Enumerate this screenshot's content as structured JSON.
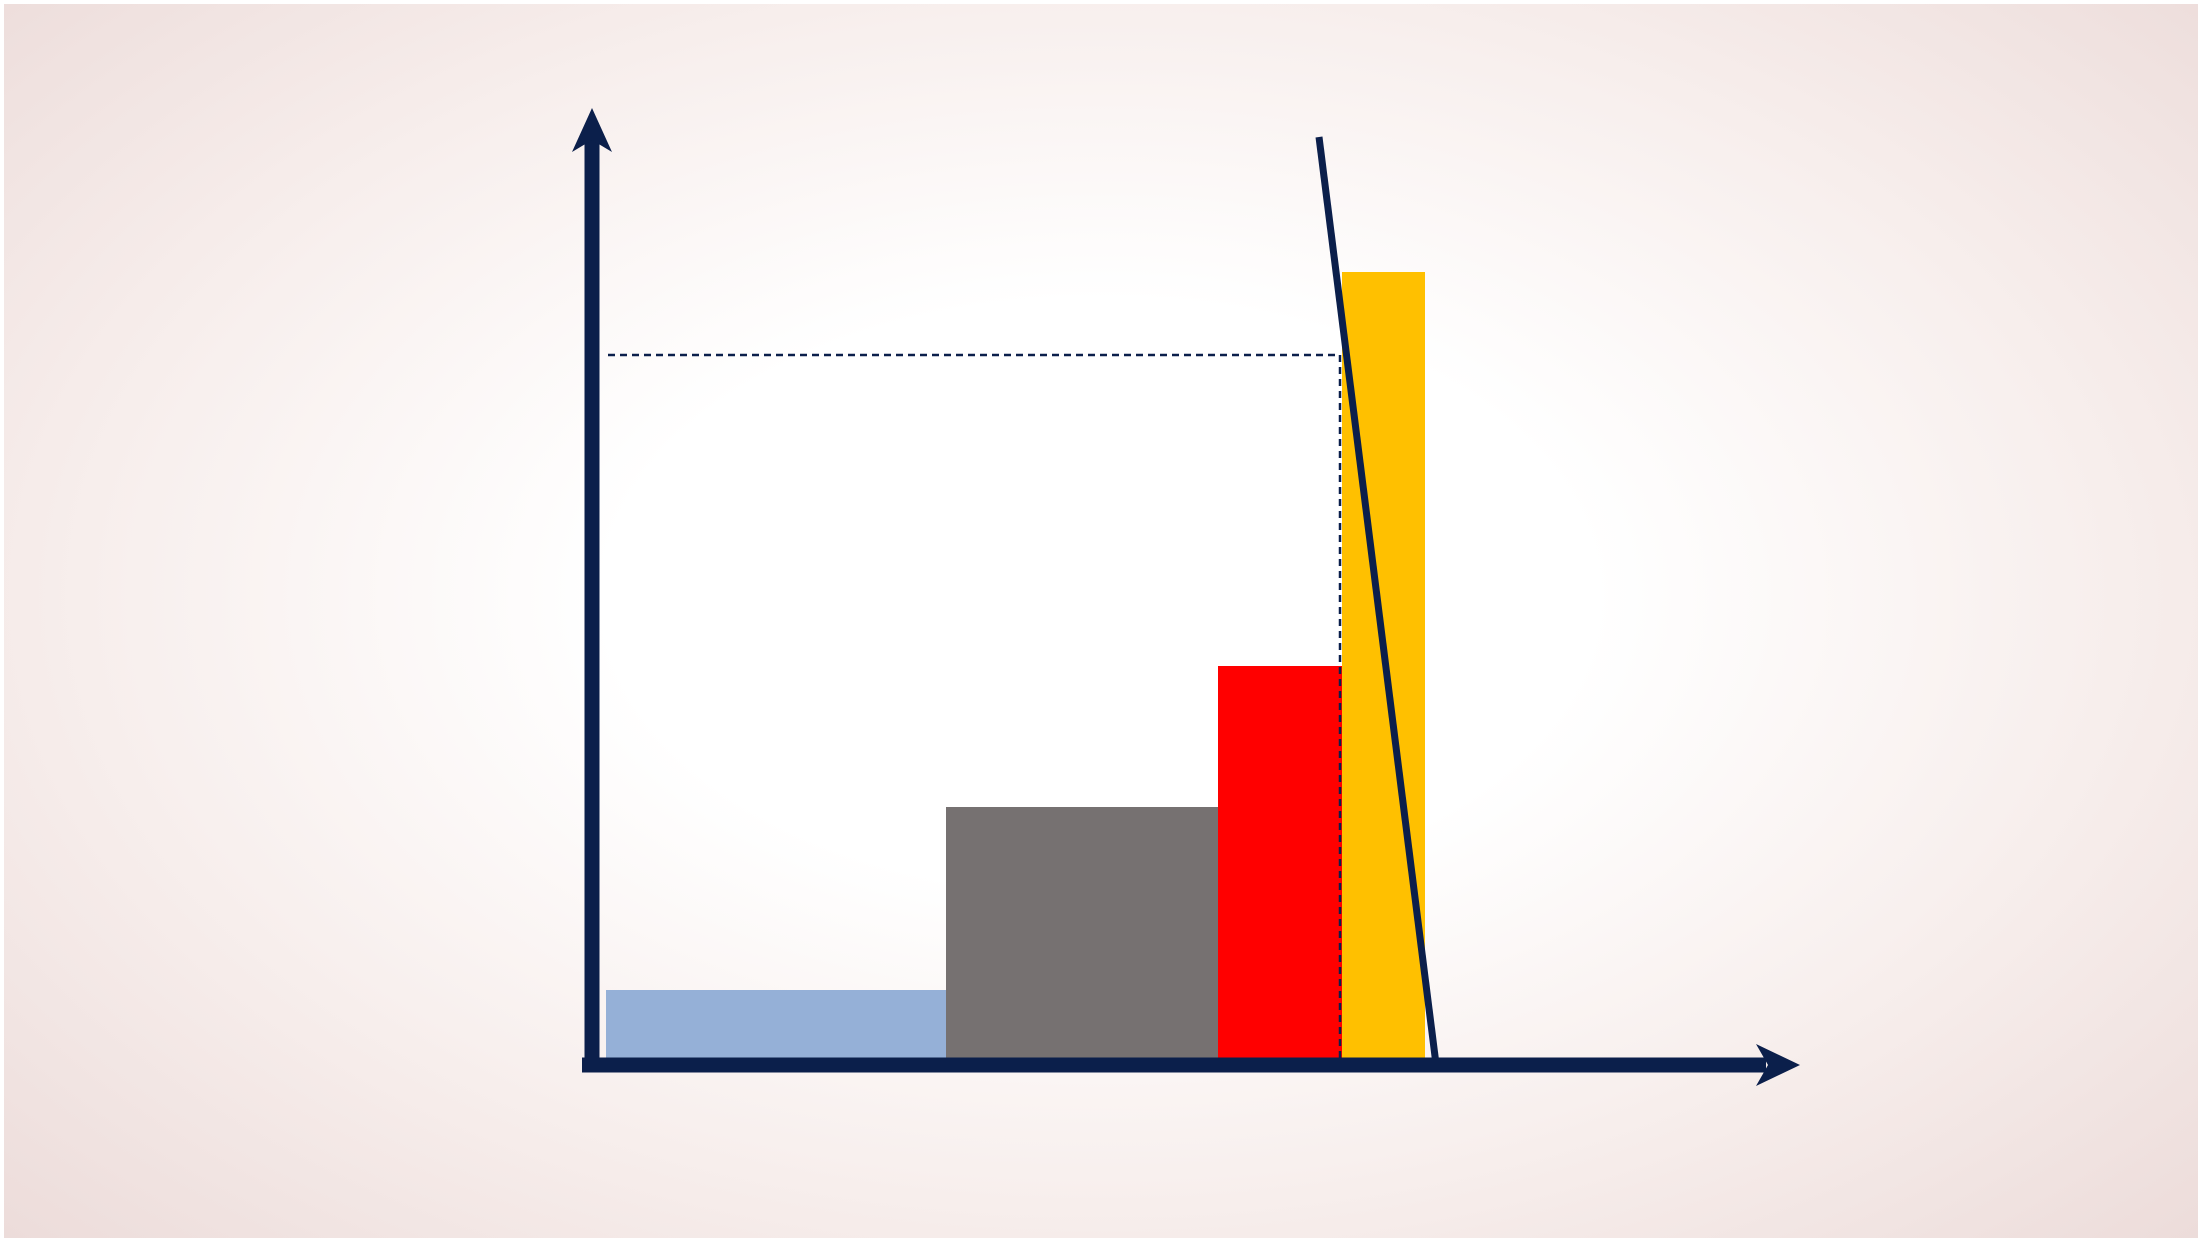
{
  "diagram": {
    "colors": {
      "background_edge": "#ead8d6",
      "axis": "#0b1f4b",
      "dashed_line": "#0b1f4b",
      "bar_1": "#95b0d7",
      "bar_2": "#767171",
      "bar_3": "#ff0000",
      "bar_4": "#ffc000"
    },
    "bars": [
      {
        "name": "bar-light-blue",
        "color_key": "bar_1"
      },
      {
        "name": "bar-gray",
        "color_key": "bar_2"
      },
      {
        "name": "bar-red",
        "color_key": "bar_3"
      },
      {
        "name": "bar-yellow",
        "color_key": "bar_4"
      }
    ]
  }
}
